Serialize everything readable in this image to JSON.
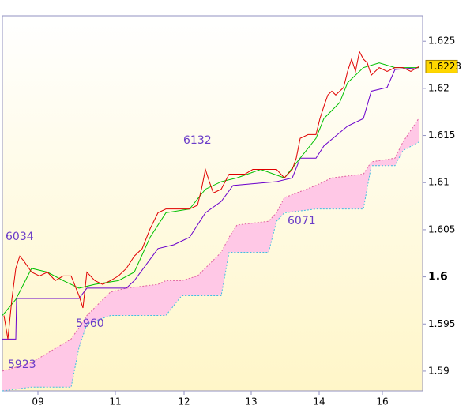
{
  "chart_data": {
    "type": "line",
    "annotations": [
      "6034",
      "5960",
      "5923",
      "6132",
      "6071"
    ],
    "last_value": 1.6223,
    "last_color": "#ffd700",
    "xlim": [
      3,
      535
    ],
    "xticks": [
      {
        "value": 48,
        "label": "09"
      },
      {
        "value": 146,
        "label": "11"
      },
      {
        "value": 233,
        "label": "12"
      },
      {
        "value": 318,
        "label": "13"
      },
      {
        "value": 404,
        "label": "14"
      },
      {
        "value": 484,
        "label": "16"
      }
    ],
    "ylim": [
      1.5879,
      1.6277
    ],
    "yticks": [
      1.59,
      1.595,
      1.6,
      1.605,
      1.61,
      1.615,
      1.62,
      1.625
    ],
    "cloud": {
      "color": "#ffc8e6",
      "upper_color": "#e060a0",
      "lower_color": "#40c0e0",
      "x": [
        3,
        40,
        90,
        100,
        110,
        140,
        160,
        200,
        210,
        230,
        250,
        280,
        290,
        300,
        340,
        350,
        360,
        400,
        420,
        460,
        470,
        500,
        510,
        530
      ],
      "upper": [
        1.59,
        1.5909,
        1.5934,
        1.5946,
        1.5959,
        1.5984,
        1.5988,
        1.5992,
        1.5996,
        1.5996,
        1.6001,
        1.6026,
        1.6042,
        1.6055,
        1.6059,
        1.6068,
        1.6084,
        1.6097,
        1.6105,
        1.6109,
        1.6122,
        1.6126,
        1.6143,
        1.6168
      ],
      "lower": [
        1.5879,
        1.5883,
        1.5883,
        1.5925,
        1.595,
        1.5959,
        1.5959,
        1.5959,
        1.5959,
        1.598,
        1.598,
        1.598,
        1.6026,
        1.6026,
        1.6026,
        1.6059,
        1.6068,
        1.6072,
        1.6072,
        1.6072,
        1.6118,
        1.6118,
        1.6134,
        1.6143
      ]
    },
    "series": [
      {
        "color": "#6a00cc",
        "x": [
          3,
          20,
          21,
          100,
          110,
          160,
          170,
          200,
          220,
          240,
          260,
          280,
          295,
          350,
          370,
          380,
          400,
          410,
          440,
          460,
          470,
          490,
          500,
          530
        ],
        "values": [
          1.5934,
          1.5934,
          1.5977,
          1.5977,
          1.5988,
          1.5988,
          1.5996,
          1.603,
          1.6034,
          1.6042,
          1.6068,
          1.608,
          1.6097,
          1.6101,
          1.6105,
          1.6126,
          1.6126,
          1.6139,
          1.616,
          1.6168,
          1.6197,
          1.6201,
          1.622,
          1.6222
        ]
      },
      {
        "color": "#00c000",
        "x": [
          3,
          20,
          40,
          60,
          80,
          100,
          120,
          150,
          170,
          190,
          210,
          240,
          260,
          280,
          300,
          330,
          360,
          380,
          400,
          410,
          430,
          440,
          460,
          480,
          500,
          530
        ],
        "values": [
          1.5959,
          1.5976,
          1.6009,
          1.6005,
          1.5996,
          1.5988,
          1.5992,
          1.5996,
          1.6005,
          1.6042,
          1.6068,
          1.6072,
          1.6093,
          1.6101,
          1.6105,
          1.6114,
          1.6105,
          1.6126,
          1.6147,
          1.6168,
          1.6185,
          1.6206,
          1.6222,
          1.6227,
          1.6222,
          1.6222
        ]
      },
      {
        "color": "#e00000",
        "x": [
          5,
          10,
          15,
          20,
          25,
          30,
          40,
          50,
          60,
          70,
          80,
          90,
          100,
          105,
          110,
          120,
          130,
          140,
          150,
          160,
          170,
          180,
          190,
          200,
          210,
          220,
          230,
          240,
          250,
          255,
          260,
          265,
          270,
          280,
          290,
          300,
          310,
          320,
          330,
          340,
          350,
          360,
          370,
          375,
          380,
          390,
          400,
          405,
          410,
          415,
          420,
          425,
          430,
          435,
          440,
          445,
          450,
          455,
          460,
          465,
          470,
          480,
          490,
          500,
          510,
          520,
          530
        ],
        "values": [
          1.5959,
          1.5934,
          1.5976,
          1.6009,
          1.6022,
          1.6017,
          1.6005,
          1.6001,
          1.6005,
          1.5996,
          1.6001,
          1.6001,
          1.598,
          1.5967,
          1.6005,
          1.5996,
          1.5992,
          1.5996,
          1.6001,
          1.6009,
          1.6022,
          1.603,
          1.6051,
          1.6068,
          1.6072,
          1.6072,
          1.6072,
          1.6072,
          1.6076,
          1.6093,
          1.6114,
          1.6101,
          1.6089,
          1.6093,
          1.6109,
          1.6109,
          1.6109,
          1.6114,
          1.6114,
          1.6114,
          1.6114,
          1.6105,
          1.6114,
          1.6126,
          1.6147,
          1.6151,
          1.6151,
          1.6168,
          1.6181,
          1.6193,
          1.6197,
          1.6193,
          1.6197,
          1.6201,
          1.6218,
          1.6231,
          1.6218,
          1.6239,
          1.6231,
          1.6227,
          1.6214,
          1.6222,
          1.6218,
          1.6222,
          1.6222,
          1.6218,
          1.6223
        ]
      }
    ]
  }
}
